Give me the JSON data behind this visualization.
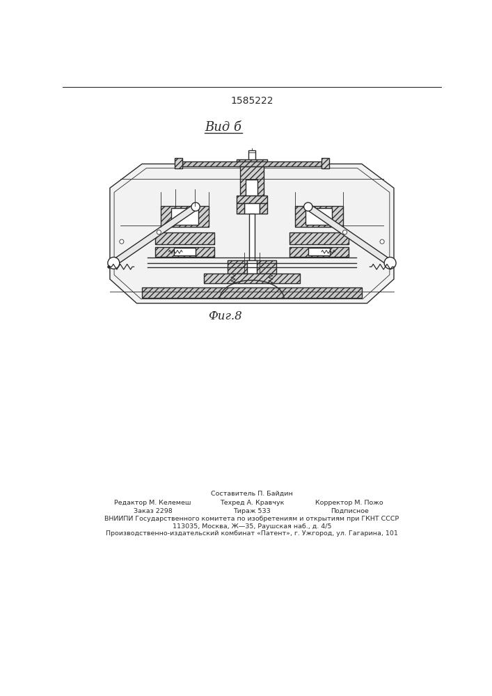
{
  "patent_number": "1585222",
  "title_view": "Вид б",
  "fig_label": "Фиг.8",
  "footer_line1": "Составитель П. Байдин",
  "footer_line2_left": "Редактор М. Келемеш",
  "footer_line2_mid": "Техред А. Кравчук",
  "footer_line2_right": "Корректор М. Пожо",
  "footer_line3_left": "Заказ 2298",
  "footer_line3_mid": "Тираж 533",
  "footer_line3_right": "Подписное",
  "footer_line4": "ВНИИПИ Государственного комитета по изобретениям и открытиям при ГКНТ СССР",
  "footer_line5": "113035, Москва, Ж—35, Раушская наб., д. 4/5",
  "footer_line6": "Производственно-издательский комбинат «Патент», г. Ужгород, ул. Гагарина, 101",
  "bg_color": "#ffffff",
  "line_color": "#2a2a2a"
}
